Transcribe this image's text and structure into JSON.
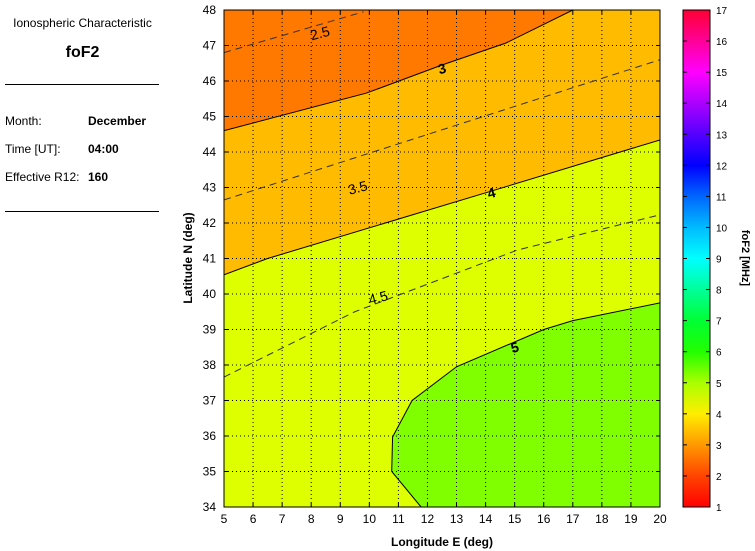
{
  "info_panel": {
    "heading": "Ionospheric Characteristic",
    "characteristic": "foF2",
    "rows": [
      {
        "label": "Month:",
        "value": "December"
      },
      {
        "label": "Time [UT]:",
        "value": "04:00"
      },
      {
        "label": "Effective R12:",
        "value": "160"
      }
    ]
  },
  "chart_data": {
    "type": "contour",
    "xlabel": "Longitude E (deg)",
    "ylabel": "Latitude N (deg)",
    "xlim": [
      5,
      20
    ],
    "ylim": [
      34,
      48
    ],
    "xticks": [
      5,
      6,
      7,
      8,
      9,
      10,
      11,
      12,
      13,
      14,
      15,
      16,
      17,
      18,
      19,
      20
    ],
    "yticks": [
      34,
      35,
      36,
      37,
      38,
      39,
      40,
      41,
      42,
      43,
      44,
      45,
      46,
      47,
      48
    ],
    "grid": true,
    "colorbar": {
      "label": "foF2 [MHz]",
      "range": [
        1,
        17
      ],
      "ticks": [
        1,
        2,
        3,
        4,
        5,
        6,
        7,
        8,
        9,
        10,
        11,
        12,
        13,
        14,
        15,
        16,
        17
      ],
      "colors": [
        [
          1,
          "#ff0000"
        ],
        [
          2,
          "#ff4400"
        ],
        [
          3,
          "#ff9900"
        ],
        [
          4,
          "#ffee00"
        ],
        [
          5,
          "#aaff00"
        ],
        [
          6,
          "#22ff00"
        ],
        [
          7,
          "#00ff33"
        ],
        [
          8,
          "#00ff99"
        ],
        [
          9,
          "#00ffff"
        ],
        [
          10,
          "#00bbff"
        ],
        [
          11,
          "#0066ff"
        ],
        [
          12,
          "#0000ff"
        ],
        [
          13,
          "#5500ff"
        ],
        [
          14,
          "#aa00ff"
        ],
        [
          15,
          "#ff00ff"
        ],
        [
          16,
          "#ff0099"
        ],
        [
          17,
          "#ff0033"
        ]
      ]
    },
    "band_colors": {
      "below_3": "#ff7800",
      "3_to_4": "#ffbb00",
      "4_to_5": "#ddff00",
      "above_5": "#80ff00"
    },
    "contours": [
      {
        "level": "2.5",
        "style": "dashed",
        "points": [
          [
            5,
            46.8
          ],
          [
            9.8,
            47.95
          ]
        ],
        "label_at": [
          8.3,
          47.35
        ]
      },
      {
        "level": "3",
        "style": "solid",
        "points": [
          [
            5,
            44.6
          ],
          [
            9.9,
            45.66
          ],
          [
            12.5,
            46.45
          ],
          [
            14.7,
            47.07
          ],
          [
            17.0,
            48.0
          ]
        ],
        "label_at": [
          12.5,
          46.35
        ]
      },
      {
        "level": "3.5",
        "style": "dashed",
        "points": [
          [
            5,
            42.65
          ],
          [
            20,
            46.6
          ]
        ],
        "label_at": [
          9.6,
          43.0
        ]
      },
      {
        "level": "4",
        "style": "solid",
        "points": [
          [
            5,
            40.54
          ],
          [
            6.5,
            41.0
          ],
          [
            14.2,
            42.9
          ],
          [
            20,
            44.34
          ]
        ],
        "label_at": [
          14.2,
          42.85
        ]
      },
      {
        "level": "4.5",
        "style": "dashed",
        "points": [
          [
            5,
            37.66
          ],
          [
            9.5,
            39.5
          ],
          [
            15.1,
            41.24
          ],
          [
            20,
            42.23
          ]
        ],
        "label_at": [
          10.3,
          39.9
        ]
      },
      {
        "level": "5",
        "style": "solid",
        "points": [
          [
            20,
            39.75
          ],
          [
            17.0,
            39.25
          ],
          [
            16.0,
            39.0
          ],
          [
            13.0,
            37.95
          ],
          [
            11.47,
            37.0
          ],
          [
            10.8,
            35.97
          ],
          [
            10.77,
            35.0
          ],
          [
            11.78,
            34
          ]
        ],
        "label_at": [
          15.0,
          38.5
        ]
      }
    ]
  }
}
